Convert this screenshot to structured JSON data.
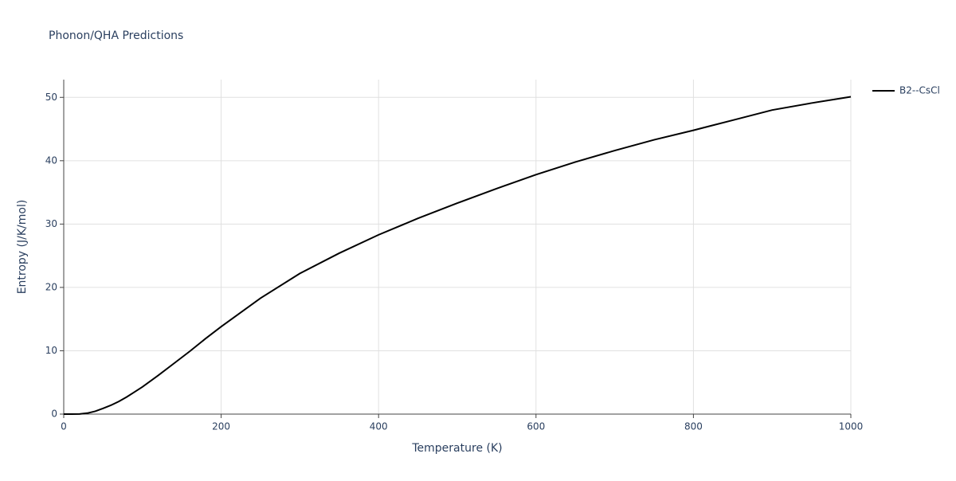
{
  "chart_data": {
    "type": "line",
    "title": "Phonon/QHA Predictions",
    "x_label": "Temperature (K)",
    "y_label": "Entropy (J/K/mol)",
    "x": [
      0,
      10,
      20,
      30,
      40,
      50,
      60,
      70,
      80,
      90,
      100,
      120,
      140,
      160,
      180,
      200,
      250,
      300,
      350,
      400,
      450,
      500,
      550,
      600,
      650,
      700,
      750,
      800,
      850,
      900,
      950,
      1000
    ],
    "series": [
      {
        "name": "B2--CsCl",
        "color": "#000000",
        "values": [
          0,
          0,
          0.02,
          0.15,
          0.45,
          0.9,
          1.4,
          2.0,
          2.7,
          3.5,
          4.3,
          6.1,
          8.0,
          9.9,
          11.9,
          13.8,
          18.3,
          22.2,
          25.4,
          28.3,
          30.9,
          33.3,
          35.6,
          37.8,
          39.8,
          41.6,
          43.3,
          44.8,
          46.4,
          48.0,
          49.1,
          50.1
        ]
      }
    ],
    "xlim": [
      0,
      1000
    ],
    "ylim": [
      0,
      52.8
    ],
    "xticks": [
      0,
      200,
      400,
      600,
      800,
      1000
    ],
    "yticks": [
      0,
      10,
      20,
      30,
      40,
      50
    ],
    "grid": true,
    "legend": "right"
  }
}
